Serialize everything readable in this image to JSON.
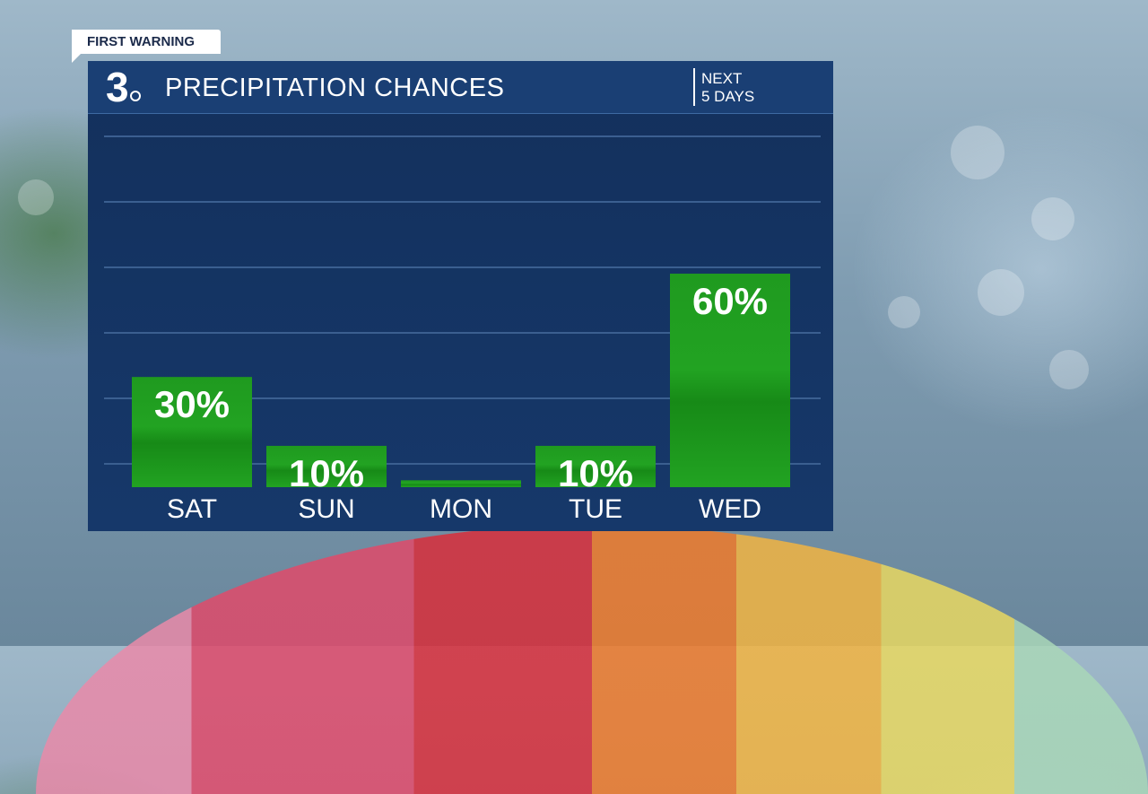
{
  "badge": {
    "label": "FIRST WARNING"
  },
  "header": {
    "logo_text": "3",
    "title": "PRECIPITATION CHANCES",
    "subtitle_line1": "NEXT",
    "subtitle_line2": "5 DAYS"
  },
  "colors": {
    "panel": "#16386a",
    "header": "#1a3f74",
    "bar": "#22a022",
    "text": "#ffffff"
  },
  "chart_data": {
    "type": "bar",
    "title": "PRECIPITATION CHANCES",
    "categories": [
      "SAT",
      "SUN",
      "MON",
      "TUE",
      "WED"
    ],
    "values": [
      30,
      10,
      0,
      10,
      60
    ],
    "value_labels": [
      "30%",
      "10%",
      "",
      "10%",
      "60%"
    ],
    "ylim": [
      -2,
      100
    ],
    "grid": true,
    "legend": "none"
  }
}
